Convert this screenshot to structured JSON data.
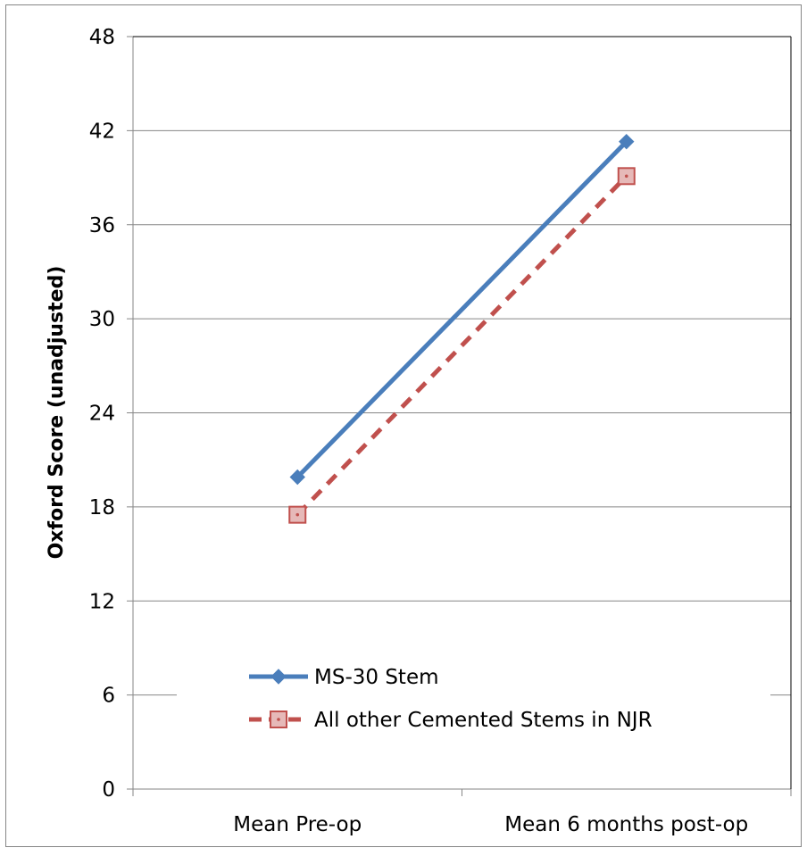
{
  "chart_data": {
    "type": "line",
    "title": "",
    "xlabel": "",
    "ylabel": "Oxford Score (unadjusted)",
    "categories": [
      "Mean Pre-op",
      "Mean 6 months post-op"
    ],
    "ylim": [
      0,
      48
    ],
    "yticks": [
      0,
      6,
      12,
      18,
      24,
      30,
      36,
      42,
      48
    ],
    "grid": true,
    "legend_position": "bottom-center inside plot",
    "series": [
      {
        "name": "MS-30 Stem",
        "values": [
          19.9,
          41.3
        ],
        "color": "#4a7ebb",
        "line_style": "solid",
        "marker": "diamond"
      },
      {
        "name": "All other Cemented Stems in NJR",
        "values": [
          17.5,
          39.1
        ],
        "color": "#c0504d",
        "marker_fill": "#e6b9b8",
        "line_style": "dashed",
        "marker": "square"
      }
    ]
  }
}
